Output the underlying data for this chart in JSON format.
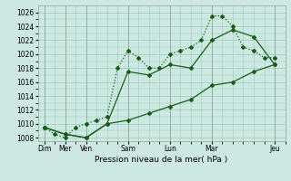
{
  "xlabel": "Pression niveau de la mer( hPa )",
  "bg_color": "#cce8e0",
  "grid_color": "#99ccbb",
  "line_color": "#1a5c1a",
  "ylim": [
    1007.5,
    1027.0
  ],
  "yticks": [
    1008,
    1010,
    1012,
    1014,
    1016,
    1018,
    1020,
    1022,
    1024,
    1026
  ],
  "day_positions": [
    0,
    1,
    2,
    4,
    6,
    8,
    11
  ],
  "day_labels": [
    "Dim",
    "Mer",
    "Ven",
    "Sam",
    "Lun",
    "Mar",
    "Jeu"
  ],
  "xlim": [
    -0.3,
    11.5
  ],
  "line1_x": [
    0,
    0.5,
    1,
    1.5,
    2,
    2.5,
    3,
    3.5,
    4,
    4.5,
    5,
    5.5,
    6,
    6.5,
    7,
    7.5,
    8,
    8.5,
    9,
    9.5,
    10,
    10.5,
    11
  ],
  "line1_y": [
    1009.5,
    1008.5,
    1008,
    1009.5,
    1010,
    1010.5,
    1011,
    1018,
    1020.5,
    1019.5,
    1018,
    1018,
    1020,
    1020.5,
    1021,
    1022,
    1025.5,
    1025.5,
    1024,
    1021,
    1020.5,
    1019.5,
    1019.5
  ],
  "line2_x": [
    0,
    1,
    2,
    3,
    4,
    5,
    6,
    7,
    8,
    9,
    10,
    11
  ],
  "line2_y": [
    1009.5,
    1008.5,
    1008,
    1010,
    1017.5,
    1017,
    1018.5,
    1018,
    1022,
    1023.5,
    1022.5,
    1018.5
  ],
  "line3_x": [
    0,
    1,
    2,
    3,
    4,
    5,
    6,
    7,
    8,
    9,
    10,
    11
  ],
  "line3_y": [
    1009.5,
    1008.5,
    1008,
    1010,
    1010.5,
    1011.5,
    1012.5,
    1013.5,
    1015.5,
    1016,
    1017.5,
    1018.5
  ],
  "tick_fontsize": 5.5,
  "xlabel_fontsize": 6.5,
  "marker_size": 2.0,
  "linewidth": 0.9
}
